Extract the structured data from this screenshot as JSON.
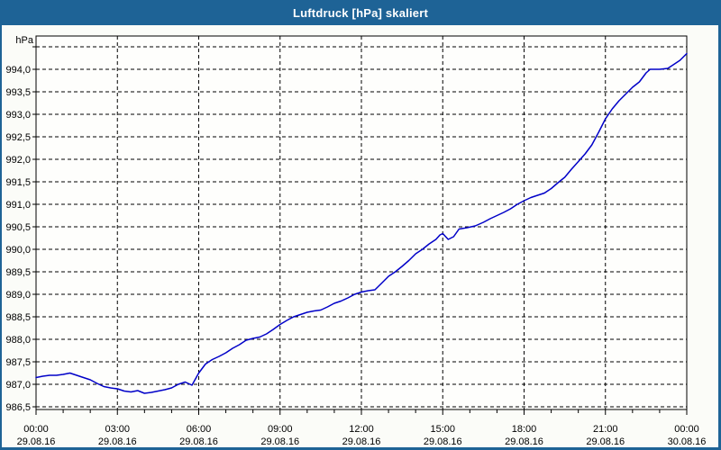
{
  "window": {
    "title": "Luftdruck [hPa] skaliert"
  },
  "chart_data": {
    "type": "line",
    "title": "Luftdruck [hPa] skaliert",
    "ylabel": "hPa",
    "xlabel": "",
    "legend": "none",
    "grid": "dashed",
    "xlim_hours": [
      0,
      24
    ],
    "ylim": [
      986.5,
      994.5
    ],
    "y_gridline_step": 0.5,
    "x_gridline_step_hours": 3,
    "x_minor_tick_step_hours": 1,
    "y_ticks": [
      {
        "v": 994.5,
        "label": ""
      },
      {
        "v": 994.0,
        "label": "994,0"
      },
      {
        "v": 993.5,
        "label": "993,5"
      },
      {
        "v": 993.0,
        "label": "993,0"
      },
      {
        "v": 992.5,
        "label": "992,5"
      },
      {
        "v": 992.0,
        "label": "992,0"
      },
      {
        "v": 991.5,
        "label": "991,5"
      },
      {
        "v": 991.0,
        "label": "991,0"
      },
      {
        "v": 990.5,
        "label": "990,5"
      },
      {
        "v": 990.0,
        "label": "990,0"
      },
      {
        "v": 989.5,
        "label": "989,5"
      },
      {
        "v": 989.0,
        "label": "989,0"
      },
      {
        "v": 988.5,
        "label": "988,5"
      },
      {
        "v": 988.0,
        "label": "988,0"
      },
      {
        "v": 987.5,
        "label": "987,5"
      },
      {
        "v": 987.0,
        "label": "987,0"
      },
      {
        "v": 986.5,
        "label": "986,5"
      }
    ],
    "x_major_ticks": [
      {
        "h": 0,
        "time": "00:00",
        "date": "29.08.16"
      },
      {
        "h": 3,
        "time": "03:00",
        "date": "29.08.16"
      },
      {
        "h": 6,
        "time": "06:00",
        "date": "29.08.16"
      },
      {
        "h": 9,
        "time": "09:00",
        "date": "29.08.16"
      },
      {
        "h": 12,
        "time": "12:00",
        "date": "29.08.16"
      },
      {
        "h": 15,
        "time": "15:00",
        "date": "29.08.16"
      },
      {
        "h": 18,
        "time": "18:00",
        "date": "29.08.16"
      },
      {
        "h": 21,
        "time": "21:00",
        "date": "29.08.16"
      },
      {
        "h": 24,
        "time": "00:00",
        "date": "30.08.16"
      }
    ],
    "series": [
      {
        "name": "Luftdruck",
        "points": [
          [
            0,
            987.15
          ],
          [
            0.25,
            987.18
          ],
          [
            0.5,
            987.2
          ],
          [
            0.75,
            987.2
          ],
          [
            1,
            987.22
          ],
          [
            1.25,
            987.25
          ],
          [
            1.5,
            987.2
          ],
          [
            1.75,
            987.15
          ],
          [
            2,
            987.1
          ],
          [
            2.25,
            987.02
          ],
          [
            2.5,
            986.95
          ],
          [
            2.75,
            986.92
          ],
          [
            3,
            986.9
          ],
          [
            3.25,
            986.85
          ],
          [
            3.5,
            986.83
          ],
          [
            3.75,
            986.86
          ],
          [
            4,
            986.8
          ],
          [
            4.25,
            986.82
          ],
          [
            4.5,
            986.85
          ],
          [
            4.75,
            986.88
          ],
          [
            5,
            986.92
          ],
          [
            5.25,
            987.0
          ],
          [
            5.5,
            987.05
          ],
          [
            5.75,
            986.98
          ],
          [
            6,
            987.25
          ],
          [
            6.25,
            987.45
          ],
          [
            6.5,
            987.55
          ],
          [
            6.75,
            987.62
          ],
          [
            7,
            987.7
          ],
          [
            7.25,
            987.8
          ],
          [
            7.5,
            987.88
          ],
          [
            7.75,
            987.98
          ],
          [
            8,
            988.02
          ],
          [
            8.25,
            988.05
          ],
          [
            8.5,
            988.12
          ],
          [
            8.75,
            988.22
          ],
          [
            9,
            988.33
          ],
          [
            9.25,
            988.42
          ],
          [
            9.5,
            988.5
          ],
          [
            9.75,
            988.55
          ],
          [
            10,
            988.6
          ],
          [
            10.25,
            988.63
          ],
          [
            10.5,
            988.65
          ],
          [
            10.75,
            988.72
          ],
          [
            11,
            988.8
          ],
          [
            11.25,
            988.85
          ],
          [
            11.5,
            988.92
          ],
          [
            11.75,
            989.0
          ],
          [
            12,
            989.05
          ],
          [
            12.25,
            989.08
          ],
          [
            12.5,
            989.1
          ],
          [
            12.75,
            989.25
          ],
          [
            13,
            989.4
          ],
          [
            13.25,
            989.5
          ],
          [
            13.5,
            989.62
          ],
          [
            13.75,
            989.75
          ],
          [
            14,
            989.9
          ],
          [
            14.25,
            990.0
          ],
          [
            14.5,
            990.12
          ],
          [
            14.75,
            990.22
          ],
          [
            14.9,
            990.32
          ],
          [
            15,
            990.35
          ],
          [
            15.2,
            990.22
          ],
          [
            15.4,
            990.28
          ],
          [
            15.6,
            990.45
          ],
          [
            15.9,
            990.48
          ],
          [
            16.2,
            990.52
          ],
          [
            16.5,
            990.6
          ],
          [
            16.75,
            990.68
          ],
          [
            17,
            990.75
          ],
          [
            17.25,
            990.82
          ],
          [
            17.5,
            990.9
          ],
          [
            17.75,
            991.0
          ],
          [
            18,
            991.08
          ],
          [
            18.25,
            991.15
          ],
          [
            18.5,
            991.2
          ],
          [
            18.75,
            991.25
          ],
          [
            19,
            991.35
          ],
          [
            19.25,
            991.48
          ],
          [
            19.5,
            991.6
          ],
          [
            19.75,
            991.78
          ],
          [
            20,
            991.95
          ],
          [
            20.25,
            992.12
          ],
          [
            20.5,
            992.32
          ],
          [
            20.75,
            992.6
          ],
          [
            21,
            992.9
          ],
          [
            21.25,
            993.12
          ],
          [
            21.5,
            993.3
          ],
          [
            21.75,
            993.45
          ],
          [
            22,
            993.6
          ],
          [
            22.25,
            993.72
          ],
          [
            22.5,
            993.92
          ],
          [
            22.65,
            994.0
          ],
          [
            23,
            994.0
          ],
          [
            23.3,
            994.02
          ],
          [
            23.5,
            994.1
          ],
          [
            23.75,
            994.2
          ],
          [
            24,
            994.35
          ]
        ]
      }
    ],
    "colors": {
      "titlebar_bg": "#1E6396",
      "titlebar_text": "#FFFFFF",
      "window_border": "#1E6396",
      "background": "#FBFCF8",
      "plot_background": "#FEFEFC",
      "grid": "#000000",
      "axis": "#000000",
      "line": "#0000C8",
      "label_text": "#000000"
    }
  }
}
